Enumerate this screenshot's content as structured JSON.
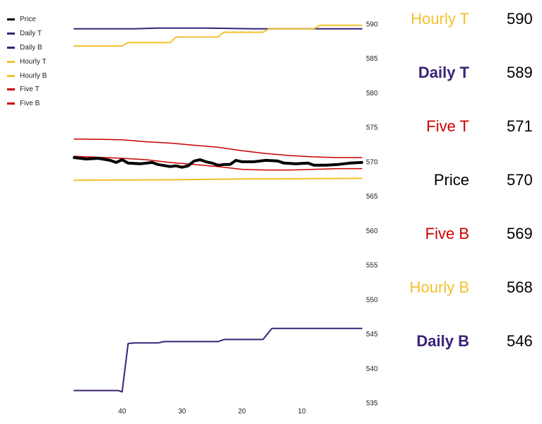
{
  "chart_data": {
    "type": "line",
    "x_ticks": [
      40,
      30,
      20,
      10
    ],
    "y_ticks": [
      590,
      585,
      580,
      575,
      570,
      565,
      560,
      555,
      550,
      545,
      540,
      535
    ],
    "xlim": [
      48,
      0
    ],
    "ylim": [
      534.5,
      590.5
    ],
    "series": [
      {
        "name": "Price",
        "color": "#000000",
        "width": 4,
        "points": [
          [
            48,
            570.6
          ],
          [
            46,
            570.4
          ],
          [
            44,
            570.5
          ],
          [
            42,
            570.2
          ],
          [
            41,
            569.9
          ],
          [
            40,
            570.3
          ],
          [
            39,
            569.8
          ],
          [
            37,
            569.7
          ],
          [
            35,
            569.9
          ],
          [
            34,
            569.6
          ],
          [
            32,
            569.3
          ],
          [
            31,
            569.4
          ],
          [
            30,
            569.2
          ],
          [
            29,
            569.4
          ],
          [
            28,
            570.1
          ],
          [
            27,
            570.3
          ],
          [
            26,
            570.0
          ],
          [
            25,
            569.8
          ],
          [
            24,
            569.5
          ],
          [
            23,
            569.6
          ],
          [
            22,
            569.6
          ],
          [
            21,
            570.2
          ],
          [
            20,
            570.0
          ],
          [
            18,
            570.0
          ],
          [
            16,
            570.2
          ],
          [
            14,
            570.1
          ],
          [
            13,
            569.8
          ],
          [
            11,
            569.7
          ],
          [
            9,
            569.8
          ],
          [
            8,
            569.5
          ],
          [
            6,
            569.5
          ],
          [
            4,
            569.6
          ],
          [
            2,
            569.8
          ],
          [
            0,
            569.9
          ]
        ]
      },
      {
        "name": "Daily T",
        "color": "#3b2277",
        "width": 2,
        "points": [
          [
            48,
            589.3
          ],
          [
            38,
            589.3
          ],
          [
            34,
            589.4
          ],
          [
            26,
            589.4
          ],
          [
            18,
            589.3
          ],
          [
            0,
            589.3
          ]
        ]
      },
      {
        "name": "Daily B",
        "color": "#3b2277",
        "width": 2,
        "points": [
          [
            48,
            536.8
          ],
          [
            40.7,
            536.8
          ],
          [
            40,
            536.6
          ],
          [
            39,
            543.6
          ],
          [
            38,
            543.7
          ],
          [
            34,
            543.7
          ],
          [
            33,
            543.9
          ],
          [
            24,
            543.9
          ],
          [
            23,
            544.2
          ],
          [
            16.5,
            544.2
          ],
          [
            15,
            545.8
          ],
          [
            0,
            545.8
          ]
        ]
      },
      {
        "name": "Hourly T",
        "color": "#f2c12e",
        "width": 2,
        "points": [
          [
            48,
            586.8
          ],
          [
            40,
            586.8
          ],
          [
            39,
            587.3
          ],
          [
            32,
            587.3
          ],
          [
            31,
            588.1
          ],
          [
            24,
            588.1
          ],
          [
            23,
            588.8
          ],
          [
            16.5,
            588.8
          ],
          [
            15.5,
            589.3
          ],
          [
            8,
            589.3
          ],
          [
            7,
            589.8
          ],
          [
            0,
            589.8
          ]
        ]
      },
      {
        "name": "Hourly B",
        "color": "#f2c12e",
        "width": 2,
        "points": [
          [
            48,
            567.3
          ],
          [
            30,
            567.4
          ],
          [
            20,
            567.5
          ],
          [
            0,
            567.6
          ]
        ]
      },
      {
        "name": "Five T",
        "color": "#cc0000",
        "width": 1.5,
        "points": [
          [
            48,
            573.3
          ],
          [
            40,
            573.2
          ],
          [
            36,
            572.9
          ],
          [
            32,
            572.7
          ],
          [
            28,
            572.4
          ],
          [
            24,
            572.1
          ],
          [
            20,
            571.6
          ],
          [
            16,
            571.2
          ],
          [
            12,
            570.9
          ],
          [
            8,
            570.7
          ],
          [
            4,
            570.6
          ],
          [
            0,
            570.6
          ]
        ]
      },
      {
        "name": "Five B",
        "color": "#cc0000",
        "width": 1.5,
        "points": [
          [
            48,
            570.8
          ],
          [
            40,
            570.5
          ],
          [
            36,
            570.3
          ],
          [
            32,
            569.9
          ],
          [
            28,
            569.6
          ],
          [
            24,
            569.3
          ],
          [
            20,
            568.9
          ],
          [
            16,
            568.8
          ],
          [
            12,
            568.8
          ],
          [
            8,
            568.9
          ],
          [
            4,
            569.0
          ],
          [
            0,
            569.0
          ]
        ]
      }
    ]
  },
  "readout": [
    {
      "label": "Hourly T",
      "value": "590",
      "color": "#f2c12e",
      "bold": false
    },
    {
      "label": "Daily T",
      "value": "589",
      "color": "#3b2277",
      "bold": true
    },
    {
      "label": "Five T",
      "value": "571",
      "color": "#cc0000",
      "bold": false
    },
    {
      "label": "Price",
      "value": "570",
      "color": "#000000",
      "bold": false
    },
    {
      "label": "Five B",
      "value": "569",
      "color": "#cc0000",
      "bold": false
    },
    {
      "label": "Hourly B",
      "value": "568",
      "color": "#f2c12e",
      "bold": false
    },
    {
      "label": "Daily B",
      "value": "546",
      "color": "#3b2277",
      "bold": true
    }
  ]
}
